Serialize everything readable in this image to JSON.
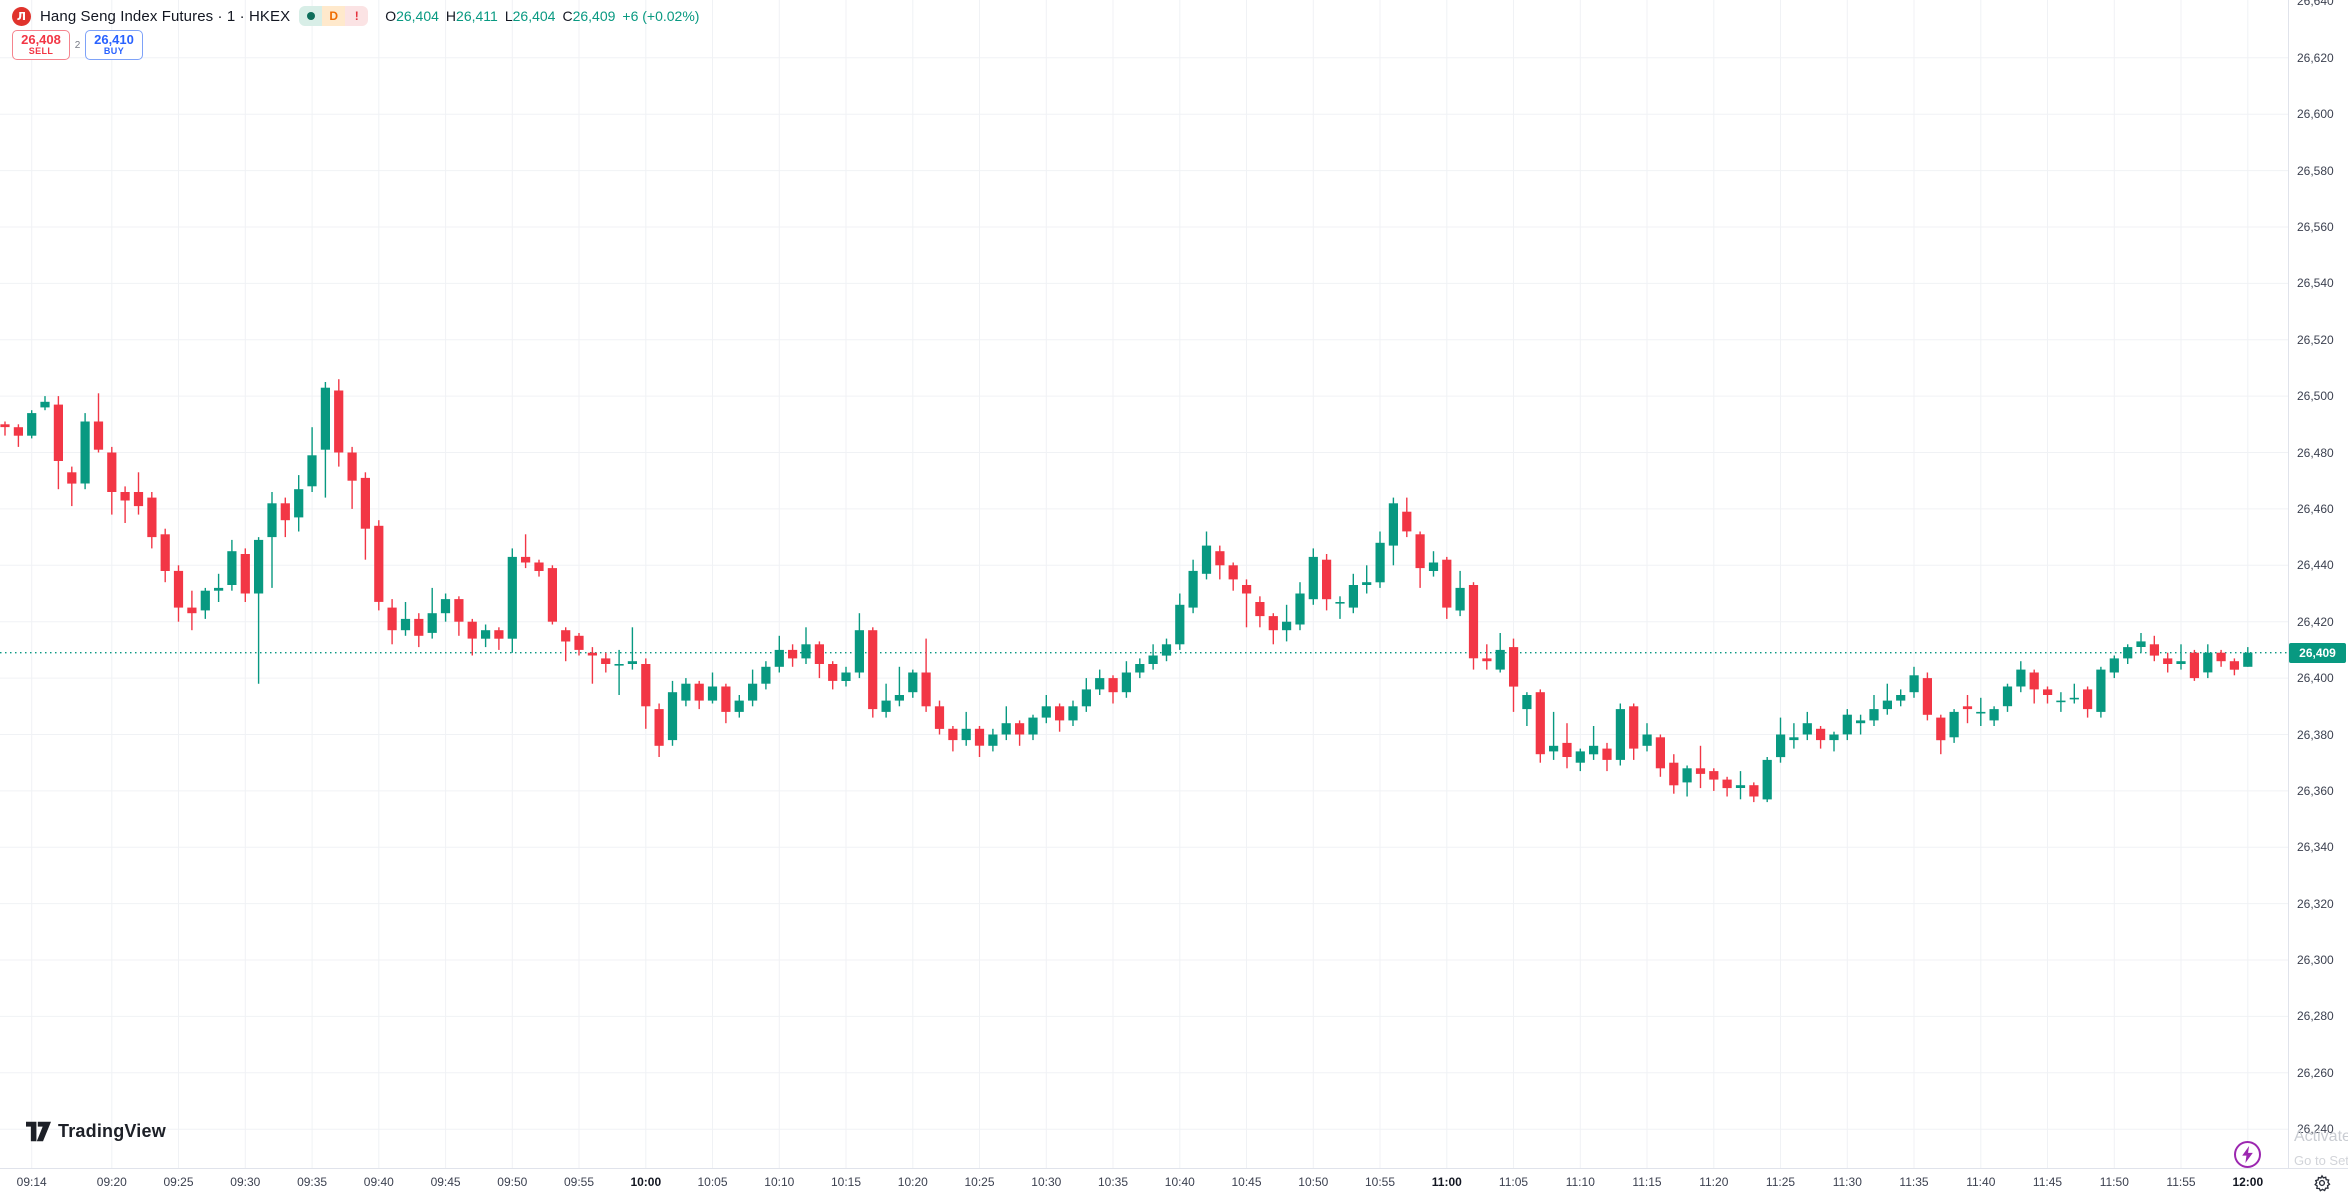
{
  "header": {
    "logo_glyph": "Л",
    "symbol_title": "Hang Seng Index Futures · 1 · HKEX",
    "badges": {
      "delayed": "D",
      "alert": "!"
    },
    "ohlc": {
      "o_label": "O",
      "o": "26,404",
      "h_label": "H",
      "h": "26,411",
      "l_label": "L",
      "l": "26,404",
      "c_label": "C",
      "c": "26,409",
      "change": "+6 (+0.02%)"
    }
  },
  "order_panel": {
    "sell_price": "26,408",
    "sell_label": "SELL",
    "spread": "2",
    "buy_price": "26,410",
    "buy_label": "BUY"
  },
  "footer": {
    "brand": "TradingView"
  },
  "watermark": {
    "line1": "Activate Windows",
    "line2": "Go to Settings to activate Windows."
  },
  "price_axis": {
    "last_price_label": "26,409"
  },
  "chart_data": {
    "type": "candlestick",
    "symbol": "Hang Seng Index Futures",
    "exchange": "HKEX",
    "interval": "1 minute",
    "title": "Hang Seng Index Futures · 1 · HKEX",
    "colors": {
      "up": "#089981",
      "down": "#F23645",
      "last_price_line": "#089981",
      "grid": "#f0f2f5"
    },
    "y_axis": {
      "min": 26240,
      "max": 26640,
      "tick_step": 20
    },
    "last_price": 26409,
    "time_ticks": [
      {
        "label": "09:14",
        "i": 2,
        "bold": false
      },
      {
        "label": "09:20",
        "i": 8,
        "bold": false
      },
      {
        "label": "09:25",
        "i": 13,
        "bold": false
      },
      {
        "label": "09:30",
        "i": 18,
        "bold": false
      },
      {
        "label": "09:35",
        "i": 23,
        "bold": false
      },
      {
        "label": "09:40",
        "i": 28,
        "bold": false
      },
      {
        "label": "09:45",
        "i": 33,
        "bold": false
      },
      {
        "label": "09:50",
        "i": 38,
        "bold": false
      },
      {
        "label": "09:55",
        "i": 43,
        "bold": false
      },
      {
        "label": "10:00",
        "i": 48,
        "bold": true
      },
      {
        "label": "10:05",
        "i": 53,
        "bold": false
      },
      {
        "label": "10:10",
        "i": 58,
        "bold": false
      },
      {
        "label": "10:15",
        "i": 63,
        "bold": false
      },
      {
        "label": "10:20",
        "i": 68,
        "bold": false
      },
      {
        "label": "10:25",
        "i": 73,
        "bold": false
      },
      {
        "label": "10:30",
        "i": 78,
        "bold": false
      },
      {
        "label": "10:35",
        "i": 83,
        "bold": false
      },
      {
        "label": "10:40",
        "i": 88,
        "bold": false
      },
      {
        "label": "10:45",
        "i": 93,
        "bold": false
      },
      {
        "label": "10:50",
        "i": 98,
        "bold": false
      },
      {
        "label": "10:55",
        "i": 103,
        "bold": false
      },
      {
        "label": "11:00",
        "i": 108,
        "bold": true
      },
      {
        "label": "11:05",
        "i": 113,
        "bold": false
      },
      {
        "label": "11:10",
        "i": 118,
        "bold": false
      },
      {
        "label": "11:15",
        "i": 123,
        "bold": false
      },
      {
        "label": "11:20",
        "i": 128,
        "bold": false
      },
      {
        "label": "11:25",
        "i": 133,
        "bold": false
      },
      {
        "label": "11:30",
        "i": 138,
        "bold": false
      },
      {
        "label": "11:35",
        "i": 143,
        "bold": false
      },
      {
        "label": "11:40",
        "i": 148,
        "bold": false
      },
      {
        "label": "11:45",
        "i": 153,
        "bold": false
      },
      {
        "label": "11:50",
        "i": 158,
        "bold": false
      },
      {
        "label": "11:55",
        "i": 163,
        "bold": false
      },
      {
        "label": "12:00",
        "i": 168,
        "bold": true
      }
    ],
    "candles": [
      [
        26490,
        26491,
        26486,
        26489
      ],
      [
        26489,
        26490,
        26482,
        26486
      ],
      [
        26486,
        26495,
        26485,
        26494
      ],
      [
        26496,
        26500,
        26495,
        26498
      ],
      [
        26497,
        26500,
        26467,
        26477
      ],
      [
        26473,
        26475,
        26461,
        26469
      ],
      [
        26469,
        26494,
        26467,
        26491
      ],
      [
        26491,
        26501,
        26480,
        26481
      ],
      [
        26480,
        26482,
        26458,
        26466
      ],
      [
        26466,
        26468,
        26455,
        26463
      ],
      [
        26466,
        26473,
        26458,
        26461
      ],
      [
        26464,
        26466,
        26446,
        26450
      ],
      [
        26451,
        26453,
        26434,
        26438
      ],
      [
        26438,
        26440,
        26420,
        26425
      ],
      [
        26425,
        26431,
        26417,
        26423
      ],
      [
        26424,
        26432,
        26421,
        26431
      ],
      [
        26431,
        26437,
        26427,
        26432
      ],
      [
        26433,
        26449,
        26431,
        26445
      ],
      [
        26444,
        26446,
        26427,
        26430
      ],
      [
        26430,
        26450,
        26398,
        26449
      ],
      [
        26450,
        26466,
        26432,
        26462
      ],
      [
        26462,
        26464,
        26450,
        26456
      ],
      [
        26457,
        26472,
        26452,
        26467
      ],
      [
        26468,
        26489,
        26466,
        26479
      ],
      [
        26481,
        26505,
        26464,
        26503
      ],
      [
        26502,
        26506,
        26475,
        26480
      ],
      [
        26480,
        26482,
        26460,
        26470
      ],
      [
        26471,
        26473,
        26442,
        26453
      ],
      [
        26454,
        26456,
        26424,
        26427
      ],
      [
        26425,
        26428,
        26412,
        26417
      ],
      [
        26417,
        26427,
        26415,
        26421
      ],
      [
        26421,
        26423,
        26411,
        26415
      ],
      [
        26416,
        26432,
        26414,
        26423
      ],
      [
        26423,
        26430,
        26420,
        26428
      ],
      [
        26428,
        26429,
        26415,
        26420
      ],
      [
        26420,
        26421,
        26408,
        26414
      ],
      [
        26414,
        26419,
        26411,
        26417
      ],
      [
        26417,
        26418,
        26410,
        26414
      ],
      [
        26414,
        26446,
        26409,
        26443
      ],
      [
        26443,
        26451,
        26439,
        26441
      ],
      [
        26441,
        26442,
        26436,
        26438
      ],
      [
        26439,
        26440,
        26419,
        26420
      ],
      [
        26417,
        26418,
        26406,
        26413
      ],
      [
        26415,
        26416,
        26408,
        26410
      ],
      [
        26409,
        26411,
        26398,
        26408
      ],
      [
        26407,
        26409,
        26402,
        26405
      ],
      [
        26405,
        26410,
        26394,
        26405
      ],
      [
        26405,
        26418,
        26403,
        26406
      ],
      [
        26405,
        26407,
        26382,
        26390
      ],
      [
        26389,
        26391,
        26372,
        26376
      ],
      [
        26378,
        26399,
        26376,
        26395
      ],
      [
        26392,
        26400,
        26390,
        26398
      ],
      [
        26398,
        26399,
        26389,
        26392
      ],
      [
        26392,
        26402,
        26391,
        26397
      ],
      [
        26397,
        26398,
        26384,
        26388
      ],
      [
        26388,
        26394,
        26386,
        26392
      ],
      [
        26392,
        26403,
        26390,
        26398
      ],
      [
        26398,
        26406,
        26396,
        26404
      ],
      [
        26404,
        26415,
        26402,
        26410
      ],
      [
        26410,
        26412,
        26404,
        26407
      ],
      [
        26407,
        26418,
        26405,
        26412
      ],
      [
        26412,
        26413,
        26400,
        26405
      ],
      [
        26405,
        26406,
        26396,
        26399
      ],
      [
        26399,
        26404,
        26397,
        26402
      ],
      [
        26402,
        26423,
        26400,
        26417
      ],
      [
        26417,
        26418,
        26386,
        26389
      ],
      [
        26388,
        26398,
        26386,
        26392
      ],
      [
        26392,
        26404,
        26390,
        26394
      ],
      [
        26395,
        26403,
        26393,
        26402
      ],
      [
        26402,
        26414,
        26388,
        26390
      ],
      [
        26390,
        26392,
        26380,
        26382
      ],
      [
        26382,
        26383,
        26374,
        26378
      ],
      [
        26378,
        26388,
        26376,
        26382
      ],
      [
        26382,
        26383,
        26372,
        26376
      ],
      [
        26376,
        26382,
        26374,
        26380
      ],
      [
        26380,
        26390,
        26378,
        26384
      ],
      [
        26384,
        26385,
        26376,
        26380
      ],
      [
        26380,
        26387,
        26378,
        26386
      ],
      [
        26386,
        26394,
        26384,
        26390
      ],
      [
        26390,
        26391,
        26381,
        26385
      ],
      [
        26385,
        26392,
        26383,
        26390
      ],
      [
        26390,
        26400,
        26388,
        26396
      ],
      [
        26396,
        26403,
        26394,
        26400
      ],
      [
        26400,
        26401,
        26391,
        26395
      ],
      [
        26395,
        26406,
        26393,
        26402
      ],
      [
        26402,
        26407,
        26400,
        26405
      ],
      [
        26405,
        26412,
        26403,
        26408
      ],
      [
        26408,
        26414,
        26406,
        26412
      ],
      [
        26412,
        26430,
        26410,
        26426
      ],
      [
        26425,
        26442,
        26423,
        26438
      ],
      [
        26437,
        26452,
        26435,
        26447
      ],
      [
        26445,
        26447,
        26435,
        26440
      ],
      [
        26440,
        26441,
        26431,
        26435
      ],
      [
        26433,
        26435,
        26418,
        26430
      ],
      [
        26427,
        26429,
        26418,
        26422
      ],
      [
        26422,
        26423,
        26412,
        26417
      ],
      [
        26417,
        26426,
        26413,
        26420
      ],
      [
        26419,
        26434,
        26417,
        26430
      ],
      [
        26428,
        26446,
        26426,
        26443
      ],
      [
        26442,
        26444,
        26424,
        26428
      ],
      [
        26427,
        26429,
        26421,
        26427
      ],
      [
        26425,
        26437,
        26423,
        26433
      ],
      [
        26433,
        26440,
        26430,
        26434
      ],
      [
        26434,
        26452,
        26432,
        26448
      ],
      [
        26447,
        26464,
        26440,
        26462
      ],
      [
        26459,
        26464,
        26450,
        26452
      ],
      [
        26451,
        26452,
        26432,
        26439
      ],
      [
        26438,
        26445,
        26436,
        26441
      ],
      [
        26442,
        26443,
        26421,
        26425
      ],
      [
        26424,
        26438,
        26422,
        26432
      ],
      [
        26433,
        26434,
        26403,
        26407
      ],
      [
        26407,
        26412,
        26403,
        26406
      ],
      [
        26403,
        26416,
        26402,
        26410
      ],
      [
        26411,
        26414,
        26388,
        26397
      ],
      [
        26389,
        26395,
        26383,
        26394
      ],
      [
        26395,
        26396,
        26370,
        26373
      ],
      [
        26374,
        26388,
        26371,
        26376
      ],
      [
        26377,
        26384,
        26368,
        26372
      ],
      [
        26370,
        26375,
        26367,
        26374
      ],
      [
        26373,
        26383,
        26371,
        26376
      ],
      [
        26375,
        26377,
        26367,
        26371
      ],
      [
        26371,
        26391,
        26369,
        26389
      ],
      [
        26390,
        26391,
        26371,
        26375
      ],
      [
        26376,
        26384,
        26374,
        26380
      ],
      [
        26379,
        26380,
        26365,
        26368
      ],
      [
        26370,
        26373,
        26359,
        26362
      ],
      [
        26363,
        26369,
        26358,
        26368
      ],
      [
        26368,
        26376,
        26361,
        26366
      ],
      [
        26367,
        26368,
        26360,
        26364
      ],
      [
        26364,
        26365,
        26358,
        26361
      ],
      [
        26361,
        26367,
        26357,
        26362
      ],
      [
        26362,
        26363,
        26356,
        26358
      ],
      [
        26357,
        26372,
        26356,
        26371
      ],
      [
        26372,
        26386,
        26370,
        26380
      ],
      [
        26378,
        26384,
        26375,
        26379
      ],
      [
        26380,
        26388,
        26378,
        26384
      ],
      [
        26382,
        26383,
        26375,
        26378
      ],
      [
        26378,
        26381,
        26374,
        26380
      ],
      [
        26380,
        26389,
        26378,
        26387
      ],
      [
        26384,
        26387,
        26380,
        26385
      ],
      [
        26385,
        26394,
        26383,
        26389
      ],
      [
        26389,
        26398,
        26387,
        26392
      ],
      [
        26392,
        26396,
        26390,
        26394
      ],
      [
        26395,
        26404,
        26393,
        26401
      ],
      [
        26400,
        26402,
        26385,
        26387
      ],
      [
        26386,
        26387,
        26373,
        26378
      ],
      [
        26379,
        26389,
        26377,
        26388
      ],
      [
        26390,
        26394,
        26384,
        26389
      ],
      [
        26388,
        26393,
        26383,
        26388
      ],
      [
        26385,
        26390,
        26383,
        26389
      ],
      [
        26390,
        26398,
        26388,
        26397
      ],
      [
        26397,
        26406,
        26395,
        26403
      ],
      [
        26402,
        26403,
        26391,
        26396
      ],
      [
        26396,
        26397,
        26391,
        26394
      ],
      [
        26392,
        26395,
        26388,
        26392
      ],
      [
        26393,
        26398,
        26391,
        26393
      ],
      [
        26396,
        26397,
        26386,
        26389
      ],
      [
        26388,
        26404,
        26386,
        26403
      ],
      [
        26402,
        26408,
        26400,
        26407
      ],
      [
        26407,
        26412,
        26405,
        26411
      ],
      [
        26411,
        26416,
        26409,
        26413
      ],
      [
        26412,
        26415,
        26406,
        26408
      ],
      [
        26407,
        26409,
        26402,
        26405
      ],
      [
        26405,
        26412,
        26403,
        26406
      ],
      [
        26409,
        26410,
        26399,
        26400
      ],
      [
        26402,
        26412,
        26400,
        26409
      ],
      [
        26409,
        26410,
        26404,
        26406
      ],
      [
        26406,
        26407,
        26401,
        26403
      ],
      [
        26404,
        26411,
        26404,
        26409
      ]
    ]
  }
}
